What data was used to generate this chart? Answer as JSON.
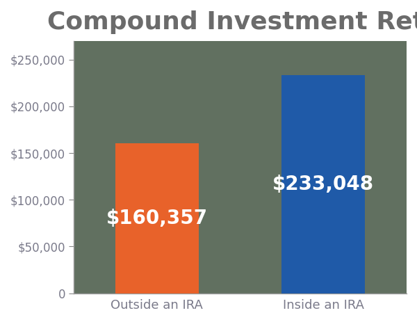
{
  "title": "Compound Investment Returns",
  "categories": [
    "Outside an IRA",
    "Inside an IRA"
  ],
  "values": [
    160357,
    233048
  ],
  "bar_colors": [
    "#E8622A",
    "#1F5AA8"
  ],
  "bar_labels": [
    "$160,357",
    "$233,048"
  ],
  "background_color": "#FFFFFF",
  "axes_bg_color": "#617060",
  "title_color": "#6B6B6B",
  "tick_label_color": "#7A7A8A",
  "bar_label_color": "#FFFFFF",
  "xlabel_color": "#7A7A8A",
  "ylim": [
    0,
    270000
  ],
  "yticks": [
    0,
    50000,
    100000,
    150000,
    200000,
    250000
  ],
  "title_fontsize": 26,
  "bar_label_fontsize": 20,
  "tick_fontsize": 12,
  "xlabel_fontsize": 13,
  "bar_width": 0.5
}
